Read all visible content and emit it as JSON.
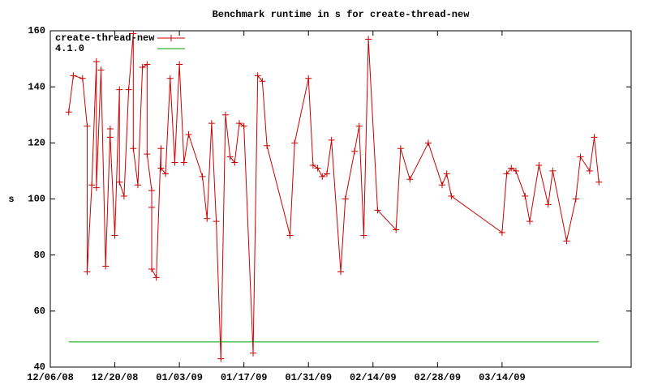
{
  "chart_data": {
    "type": "line",
    "title": "Benchmark runtime in s for create-thread-new",
    "ylabel": "s",
    "xlim": [
      "12/06/08",
      "04/11/09"
    ],
    "xticks": [
      "12/06/08",
      "12/20/08",
      "01/03/09",
      "01/17/09",
      "01/31/09",
      "02/14/09",
      "02/28/09",
      "03/14/09"
    ],
    "ylim": [
      40,
      160
    ],
    "yticks": [
      40,
      60,
      80,
      100,
      120,
      140,
      160
    ],
    "grid": false,
    "legend": "top-left",
    "series": [
      {
        "name": "create-thread-new",
        "color": "#cc0000",
        "marker": "plus",
        "x": [
          "12/10/08",
          "12/11/08",
          "12/13/08",
          "12/14/08",
          "12/14/08",
          "12/15/08",
          "12/16/08",
          "12/16/08",
          "12/17/08",
          "12/18/08",
          "12/19/08",
          "12/19/08",
          "12/20/08",
          "12/21/08",
          "12/21/08",
          "12/22/08",
          "12/23/08",
          "12/24/08",
          "12/24/08",
          "12/25/08",
          "12/26/08",
          "12/27/08",
          "12/27/08",
          "12/28/08",
          "12/28/08",
          "12/28/08",
          "12/29/08",
          "12/30/08",
          "12/30/08",
          "12/31/08",
          "01/01/09",
          "01/02/09",
          "01/03/09",
          "01/04/09",
          "01/05/09",
          "01/08/09",
          "01/09/09",
          "01/10/09",
          "01/11/09",
          "01/12/09",
          "01/13/09",
          "01/14/09",
          "01/15/09",
          "01/16/09",
          "01/17/09",
          "01/19/09",
          "01/20/09",
          "01/21/09",
          "01/22/09",
          "01/27/09",
          "01/28/09",
          "01/31/09",
          "02/01/09",
          "02/02/09",
          "02/03/09",
          "02/04/09",
          "02/05/09",
          "02/07/09",
          "02/08/09",
          "02/10/09",
          "02/11/09",
          "02/12/09",
          "02/13/09",
          "02/15/09",
          "02/19/09",
          "02/20/09",
          "02/22/09",
          "02/26/09",
          "03/01/09",
          "03/02/09",
          "03/03/09",
          "03/14/09",
          "03/15/09",
          "03/16/09",
          "03/17/09",
          "03/19/09",
          "03/20/09",
          "03/22/09",
          "03/24/09",
          "03/25/09",
          "03/28/09",
          "03/30/09",
          "03/31/09",
          "04/02/09",
          "04/03/09",
          "04/04/09"
        ],
        "values": [
          131,
          144,
          143,
          126,
          74,
          105,
          149,
          104,
          146,
          76,
          125,
          122,
          87,
          139,
          106,
          101,
          139,
          159,
          118,
          105,
          147,
          148,
          116,
          103,
          97,
          75,
          72,
          118,
          111,
          109,
          143,
          113,
          148,
          113,
          123,
          108,
          93,
          127,
          92,
          43,
          130,
          115,
          113,
          127,
          126,
          45,
          144,
          142,
          119,
          87,
          120,
          143,
          112,
          111,
          108,
          109,
          121,
          74,
          100,
          117,
          126,
          87,
          157,
          96,
          89,
          118,
          107,
          120,
          105,
          109,
          101,
          88,
          109,
          111,
          110,
          101,
          92,
          112,
          98,
          110,
          85,
          100,
          115,
          110,
          122,
          106
        ]
      },
      {
        "name": "4.1.0",
        "color": "#00a000",
        "marker": "none",
        "x": [
          "12/10/08",
          "04/04/09"
        ],
        "values": [
          49,
          49
        ]
      }
    ]
  }
}
